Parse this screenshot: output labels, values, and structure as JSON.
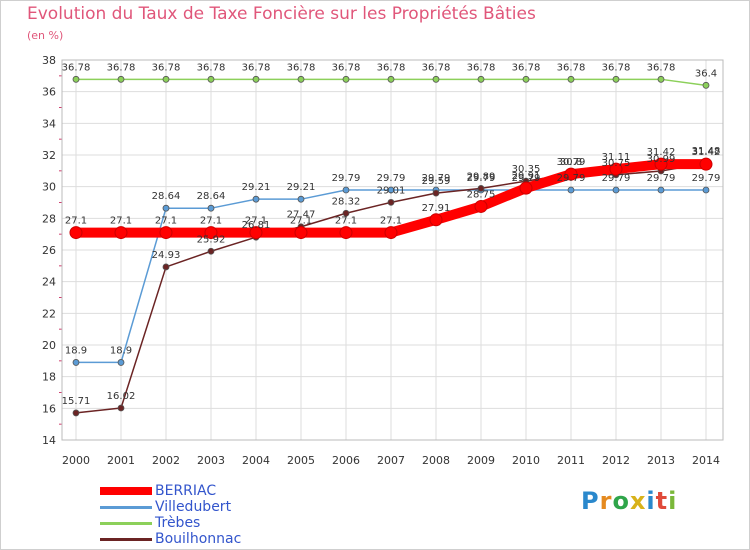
{
  "chart_data": {
    "type": "line",
    "title": "Evolution du Taux de Taxe Foncière sur les Propriétés Bâties",
    "subtitle": "(en %)",
    "xlabel": "",
    "ylabel": "",
    "x": [
      "2000",
      "2001",
      "2002",
      "2003",
      "2004",
      "2005",
      "2006",
      "2007",
      "2008",
      "2009",
      "2010",
      "2011",
      "2012",
      "2013",
      "2014"
    ],
    "ylim": [
      14,
      38
    ],
    "yticks": [
      14,
      16,
      18,
      20,
      22,
      24,
      26,
      28,
      30,
      32,
      34,
      36,
      38
    ],
    "grid": true,
    "legend_position": "bottom-left",
    "series": [
      {
        "name": "BERRIAC",
        "color": "#ff0000",
        "values": [
          27.1,
          27.1,
          27.1,
          27.1,
          27.1,
          27.1,
          27.1,
          27.1,
          27.91,
          28.75,
          29.91,
          30.79,
          31.11,
          31.42,
          31.42
        ],
        "labels": [
          "27.1",
          "27.1",
          "27.1",
          "27.1",
          "27.1",
          "27.1",
          "27.1",
          "27.1",
          "27.91",
          "28.75",
          "29.91",
          "30.79",
          "31.11",
          "31.42",
          "31.42"
        ]
      },
      {
        "name": "Villedubert",
        "color": "#5b9bd5",
        "values": [
          18.9,
          18.9,
          28.64,
          28.64,
          29.21,
          29.21,
          29.79,
          29.79,
          29.79,
          29.79,
          29.79,
          29.79,
          29.79,
          29.79,
          29.79
        ],
        "labels": [
          "18.9",
          "18.9",
          "28.64",
          "28.64",
          "29.21",
          "29.21",
          "29.79",
          "29.79",
          "29.79",
          "29.79",
          "29.79",
          "29.79",
          "29.79",
          "29.79",
          "29.79"
        ]
      },
      {
        "name": "Trèbes",
        "color": "#8cd05a",
        "values": [
          36.78,
          36.78,
          36.78,
          36.78,
          36.78,
          36.78,
          36.78,
          36.78,
          36.78,
          36.78,
          36.78,
          36.78,
          36.78,
          36.78,
          36.4
        ],
        "labels": [
          "36.78",
          "36.78",
          "36.78",
          "36.78",
          "36.78",
          "36.78",
          "36.78",
          "36.78",
          "36.78",
          "36.78",
          "36.78",
          "36.78",
          "36.78",
          "36.78",
          "36.4"
        ]
      },
      {
        "name": "Bouilhonnac",
        "color": "#6b2424",
        "values": [
          15.71,
          16.02,
          24.93,
          25.92,
          26.81,
          27.47,
          28.32,
          29.01,
          29.59,
          29.89,
          30.35,
          30.8,
          30.75,
          30.99,
          31.48
        ],
        "labels": [
          "15.71",
          "16.02",
          "24.93",
          "25.92",
          "26.81",
          "27.47",
          "28.32",
          "29.01",
          "29.59",
          "29.89",
          "30.35",
          "30.8",
          "30.75",
          "30.99",
          "31.48"
        ]
      }
    ]
  },
  "logo_text": [
    "P",
    "r",
    "o",
    "x",
    "i",
    "t",
    "i"
  ]
}
